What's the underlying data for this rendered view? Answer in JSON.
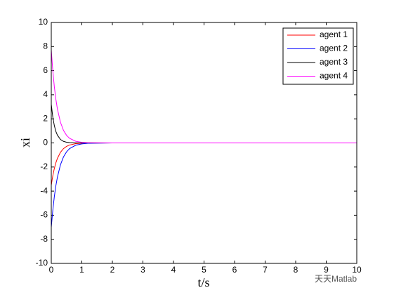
{
  "chart_data": {
    "type": "line",
    "xlabel": "t/s",
    "ylabel": "xi",
    "x": [
      0,
      0.05,
      0.1,
      0.15,
      0.2,
      0.3,
      0.4,
      0.5,
      0.6,
      0.8,
      1,
      1.2,
      2,
      4,
      6,
      8,
      10
    ],
    "series": [
      {
        "name": "agent 1",
        "color": "#ff0000",
        "values": [
          -3.5,
          -2.73,
          -2.12,
          -1.65,
          -1.29,
          -0.78,
          -0.47,
          -0.29,
          -0.17,
          -0.06,
          -0.02,
          -0.01,
          0,
          0,
          0,
          0,
          0
        ]
      },
      {
        "name": "agent 2",
        "color": "#0000ff",
        "values": [
          -7,
          -5.59,
          -4.46,
          -3.56,
          -2.85,
          -1.82,
          -1.16,
          -0.74,
          -0.47,
          -0.19,
          -0.08,
          -0.03,
          0,
          0,
          0,
          0,
          0
        ]
      },
      {
        "name": "agent 3",
        "color": "#000000",
        "values": [
          3.2,
          2.14,
          1.44,
          0.96,
          0.65,
          0.29,
          0.13,
          0.06,
          0.03,
          0.01,
          0,
          0,
          0,
          0,
          0,
          0,
          0
        ]
      },
      {
        "name": "agent 4",
        "color": "#ff00ff",
        "values": [
          7.7,
          6.0,
          4.67,
          3.63,
          2.83,
          1.72,
          1.04,
          0.63,
          0.38,
          0.14,
          0.05,
          0.02,
          0,
          0,
          0,
          0,
          0
        ]
      }
    ],
    "xlim": [
      0,
      10
    ],
    "xticks": [
      0,
      1,
      2,
      3,
      4,
      5,
      6,
      7,
      8,
      9,
      10
    ],
    "ylim": [
      -10,
      10
    ],
    "yticks": [
      -10,
      -8,
      -6,
      -4,
      -2,
      0,
      2,
      4,
      6,
      8,
      10
    ],
    "legend": "northeast",
    "watermark": "天天Matlab"
  }
}
